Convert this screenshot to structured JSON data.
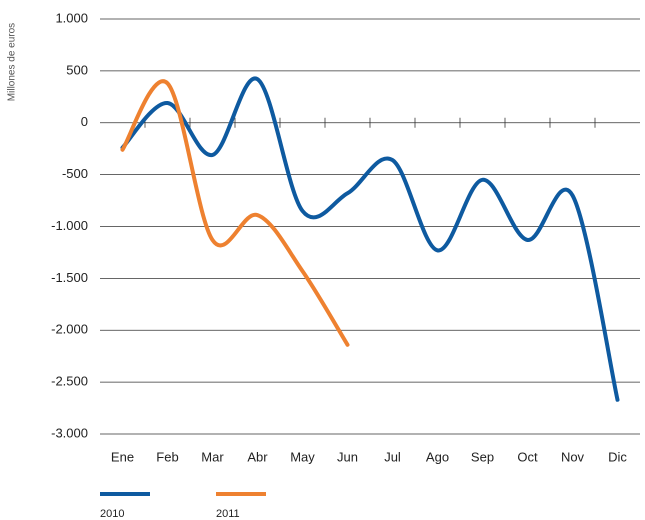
{
  "chart_data": {
    "type": "line",
    "y_label": "Millones de euros",
    "categories": [
      "Ene",
      "Feb",
      "Mar",
      "Abr",
      "May",
      "Jun",
      "Jul",
      "Ago",
      "Sep",
      "Oct",
      "Nov",
      "Dic"
    ],
    "series": [
      {
        "name": "2010",
        "color": "#0e5aa0",
        "values": [
          -240,
          190,
          -310,
          420,
          -850,
          -680,
          -360,
          -1230,
          -550,
          -1130,
          -700,
          -2670
        ]
      },
      {
        "name": "2011",
        "color": "#ee8130",
        "values": [
          -260,
          380,
          -1130,
          -890,
          -1430,
          -2140,
          null,
          null,
          null,
          null,
          null,
          null
        ]
      }
    ],
    "ylim": [
      -3000,
      1000
    ],
    "yticks": [
      {
        "value": 1000,
        "label": "1.000"
      },
      500,
      0,
      -500,
      {
        "value": -1000,
        "label": "-1.000"
      },
      {
        "value": -1500,
        "label": "-1.500"
      },
      {
        "value": -2000,
        "label": "-2.000"
      },
      {
        "value": -2500,
        "label": "-2.500"
      },
      {
        "value": -3000,
        "label": "-3.000"
      }
    ],
    "grid": true
  }
}
